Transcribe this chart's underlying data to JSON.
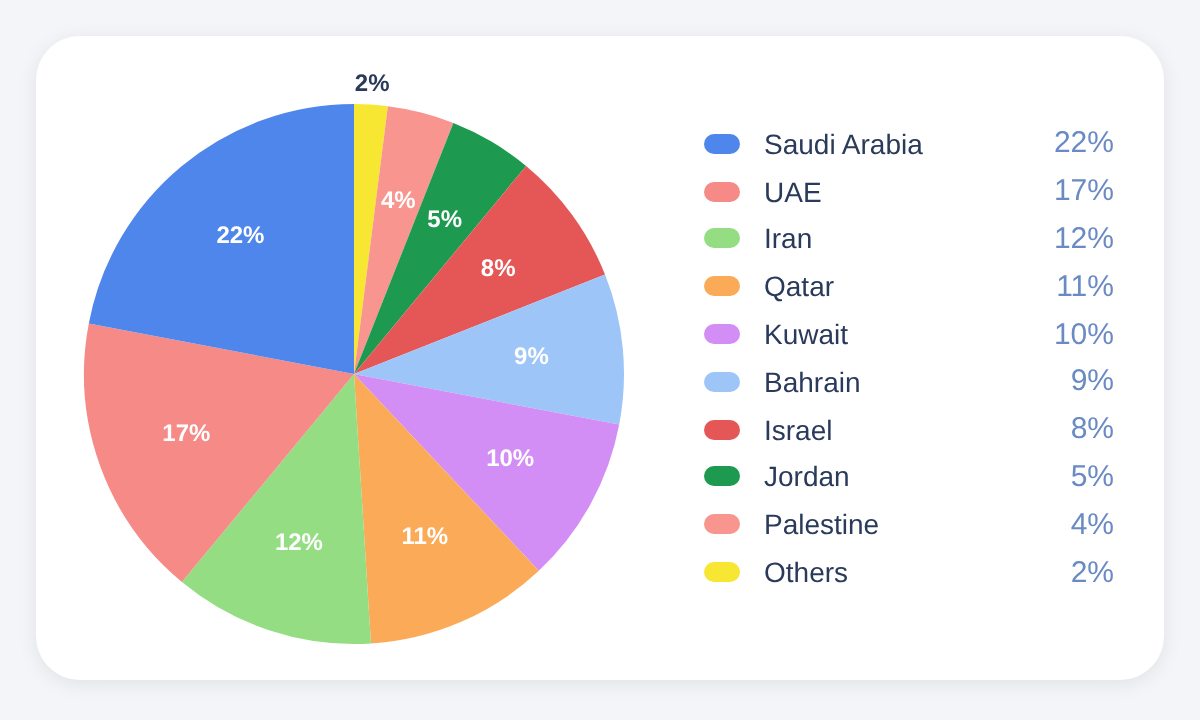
{
  "chart_data": {
    "type": "pie",
    "categories": [
      "Saudi Arabia",
      "UAE",
      "Iran",
      "Qatar",
      "Kuwait",
      "Bahrain",
      "Israel",
      "Jordan",
      "Palestine",
      "Others"
    ],
    "values": [
      22,
      17,
      12,
      11,
      10,
      9,
      8,
      5,
      4,
      2
    ],
    "value_labels": [
      "22%",
      "17%",
      "12%",
      "11%",
      "10%",
      "9%",
      "8%",
      "5%",
      "4%",
      "2%"
    ],
    "colors": [
      "#4f86ec",
      "#f58a87",
      "#94dd83",
      "#fbab57",
      "#d38ef5",
      "#9ec5f8",
      "#e55757",
      "#1d9a50",
      "#f8958e",
      "#f7e733"
    ],
    "legend": "right"
  }
}
